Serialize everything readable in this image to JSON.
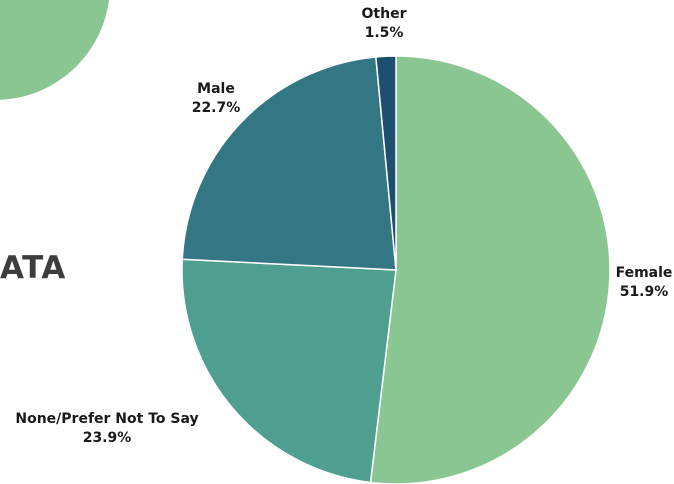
{
  "side_heading": "ATA",
  "colors": {
    "decorative_circle": "#8ac691"
  },
  "chart_data": {
    "type": "pie",
    "title": "",
    "slices": [
      {
        "label": "Female",
        "value": 51.9,
        "value_label": "51.9%",
        "color": "#8ac691"
      },
      {
        "label": "None/Prefer Not To Say",
        "value": 23.9,
        "value_label": "23.9%",
        "color": "#4e9f8f"
      },
      {
        "label": "Male",
        "value": 22.7,
        "value_label": "22.7%",
        "color": "#337785"
      },
      {
        "label": "Other",
        "value": 1.5,
        "value_label": "1.5%",
        "color": "#1f4f70"
      }
    ],
    "start": "12 o'clock",
    "direction": "clockwise",
    "legend": "none"
  }
}
